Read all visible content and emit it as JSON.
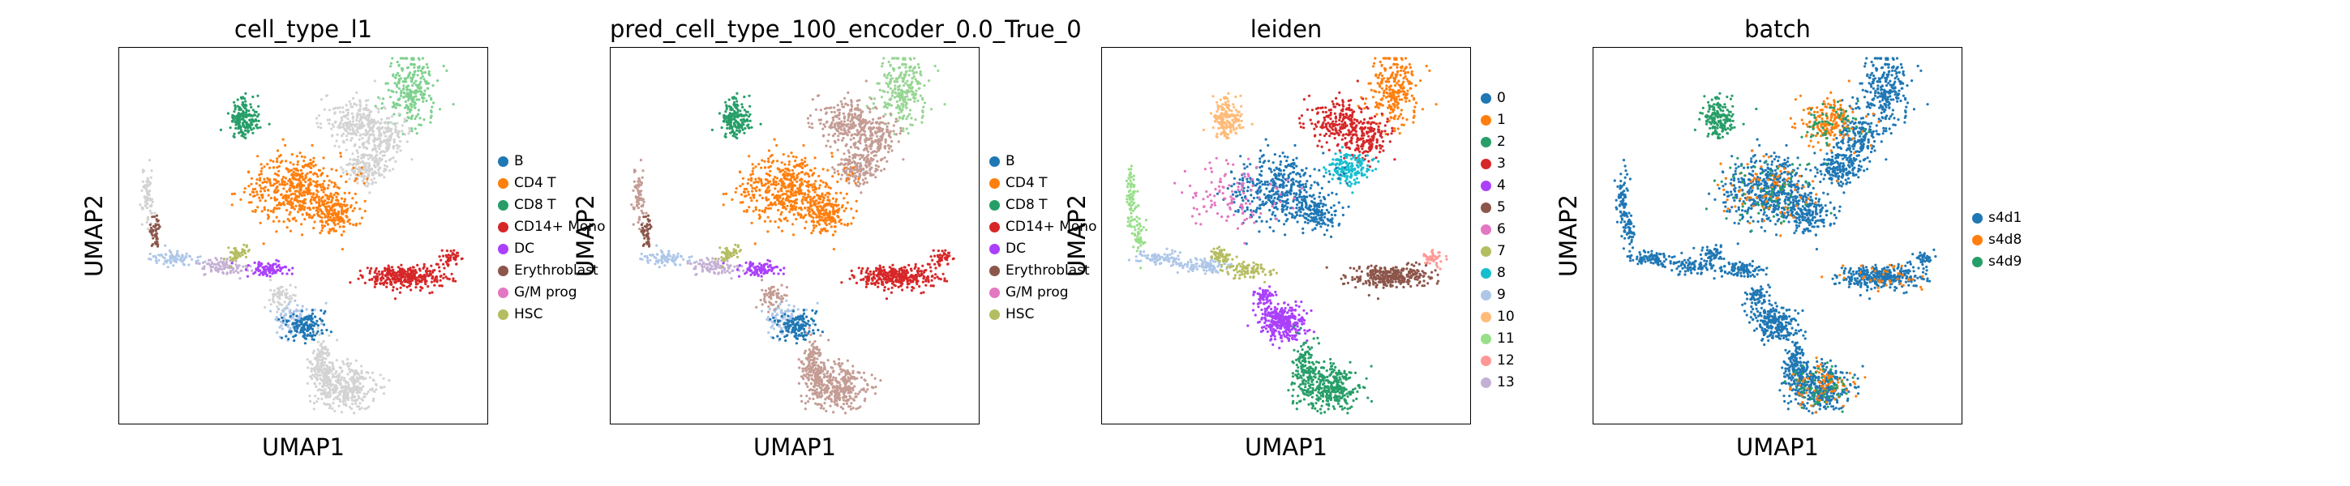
{
  "figure": {
    "panels": [
      {
        "title": "cell_type_l1",
        "xlabel": "UMAP1",
        "ylabel": "UMAP2",
        "legend": [
          "B",
          "CD4 T",
          "CD8 T",
          "CD14+ Mono",
          "DC",
          "Erythroblast",
          "G/M prog",
          "HSC"
        ]
      },
      {
        "title": "pred_cell_type_100_encoder_0.0_True_0",
        "xlabel": "UMAP1",
        "ylabel": "UMAP2",
        "legend": [
          "B",
          "CD4 T",
          "CD8 T",
          "CD14+ Mono",
          "DC",
          "Erythroblast",
          "G/M prog",
          "HSC"
        ]
      },
      {
        "title": "leiden",
        "xlabel": "UMAP1",
        "ylabel": "UMAP2",
        "legend": [
          "0",
          "1",
          "2",
          "3",
          "4",
          "5",
          "6",
          "7",
          "8",
          "9",
          "10",
          "11",
          "12",
          "13"
        ]
      },
      {
        "title": "batch",
        "xlabel": "UMAP1",
        "ylabel": "UMAP2",
        "legend": [
          "s4d1",
          "s4d8",
          "s4d9"
        ]
      }
    ]
  },
  "chart_data": [
    {
      "type": "scatter",
      "title": "cell_type_l1",
      "xlabel": "UMAP1",
      "ylabel": "UMAP2",
      "xticks": "none",
      "yticks": "none",
      "grid": false,
      "legend_placement": "right",
      "categories": [
        "B",
        "CD4 T",
        "CD8 T",
        "CD14+ Mono",
        "DC",
        "Erythroblast",
        "G/M prog",
        "HSC"
      ],
      "colors": [
        "#1f77b4",
        "#ff7f0e",
        "#279e68",
        "#d62728",
        "#aa40fc",
        "#8c564b",
        "#e377c2",
        "#b5bd61"
      ],
      "unlabeled_color": "#d3d3d3"
    },
    {
      "type": "scatter",
      "title": "pred_cell_type_100_encoder_0.0_True_0",
      "xlabel": "UMAP1",
      "ylabel": "UMAP2",
      "xticks": "none",
      "yticks": "none",
      "grid": false,
      "legend_placement": "right",
      "categories": [
        "B",
        "CD4 T",
        "CD8 T",
        "CD14+ Mono",
        "DC",
        "Erythroblast",
        "G/M prog",
        "HSC"
      ],
      "colors": [
        "#1f77b4",
        "#ff7f0e",
        "#279e68",
        "#d62728",
        "#aa40fc",
        "#8c564b",
        "#e377c2",
        "#b5bd61"
      ]
    },
    {
      "type": "scatter",
      "title": "leiden",
      "xlabel": "UMAP1",
      "ylabel": "UMAP2",
      "xticks": "none",
      "yticks": "none",
      "grid": false,
      "legend_placement": "right",
      "categories": [
        "0",
        "1",
        "2",
        "3",
        "4",
        "5",
        "6",
        "7",
        "8",
        "9",
        "10",
        "11",
        "12",
        "13"
      ],
      "colors": [
        "#1f77b4",
        "#ff7f0e",
        "#279e68",
        "#d62728",
        "#aa40fc",
        "#8c564b",
        "#e377c2",
        "#b5bd61",
        "#17becf",
        "#aec7e8",
        "#ffbb78",
        "#98df8a",
        "#ff9896",
        "#c5b0d5"
      ]
    },
    {
      "type": "scatter",
      "title": "batch",
      "xlabel": "UMAP1",
      "ylabel": "UMAP2",
      "xticks": "none",
      "yticks": "none",
      "grid": false,
      "legend_placement": "right",
      "categories": [
        "s4d1",
        "s4d8",
        "s4d9"
      ],
      "colors": [
        "#1f77b4",
        "#ff7f0e",
        "#279e68"
      ]
    }
  ]
}
